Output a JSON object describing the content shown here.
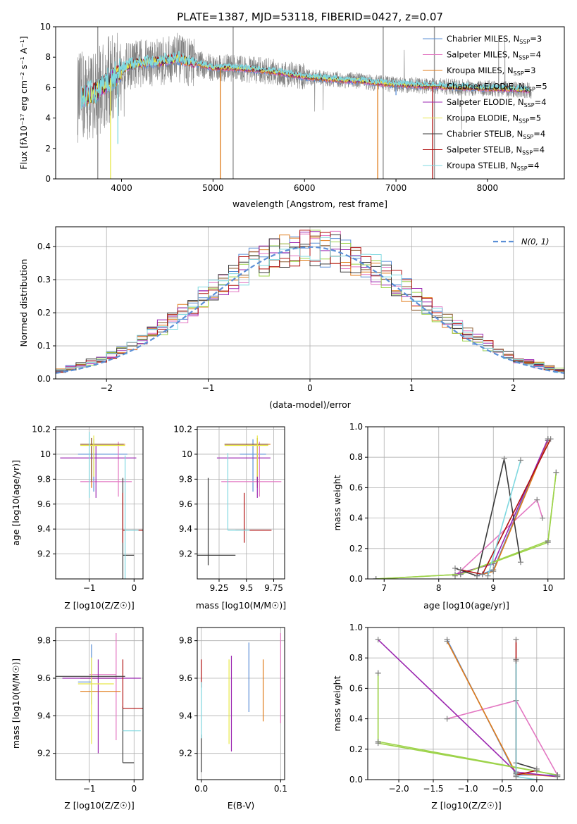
{
  "colors": {
    "Chabrier MILES": "#5b8fd6",
    "Salpeter MILES": "#e377c2",
    "Kroupa MILES": "#e07b1a",
    "Chabrier ELODIE": "#8a5a2e",
    "Salpeter ELODIE": "#9b27b0",
    "Kroupa ELODIE": "#e8e84a",
    "Chabrier STELIB": "#3a3a3a",
    "Salpeter STELIB": "#b01010",
    "Kroupa STELIB": "#7fd8e0",
    "gauss": "#5b8fd6",
    "green": "#9dd34a"
  },
  "chart_data": [
    {
      "id": "spectrum",
      "type": "line",
      "title": "PLATE=1387, MJD=53118, FIBERID=0427, z=0.07",
      "xlabel": "wavelength [Angstrom, rest frame]",
      "ylabel": "Flux [fλ10⁻¹⁷ erg cm⁻² s⁻¹ A⁻¹]",
      "xlim": [
        3280,
        8840
      ],
      "ylim": [
        0,
        10
      ],
      "xticks": [
        4000,
        5000,
        6000,
        7000,
        8000
      ],
      "yticks": [
        0,
        2,
        4,
        6,
        8,
        10
      ],
      "legend_position": "top-right",
      "continuum": [
        [
          3520,
          5.3
        ],
        [
          3700,
          5.6
        ],
        [
          3850,
          6.4
        ],
        [
          3950,
          6.8
        ],
        [
          4050,
          7.4
        ],
        [
          4200,
          7.6
        ],
        [
          4400,
          7.7
        ],
        [
          4600,
          7.9
        ],
        [
          4800,
          7.6
        ],
        [
          5000,
          7.3
        ],
        [
          5200,
          7.3
        ],
        [
          5400,
          7.2
        ],
        [
          5600,
          7.1
        ],
        [
          5800,
          6.9
        ],
        [
          6000,
          6.7
        ],
        [
          6200,
          6.6
        ],
        [
          6400,
          6.5
        ],
        [
          6600,
          6.45
        ],
        [
          6800,
          6.3
        ],
        [
          7000,
          6.2
        ],
        [
          7200,
          6.15
        ],
        [
          7400,
          6.1
        ],
        [
          7600,
          6.05
        ],
        [
          7800,
          6.0
        ],
        [
          8000,
          5.95
        ],
        [
          8200,
          5.9
        ],
        [
          8400,
          5.85
        ],
        [
          8480,
          5.8
        ]
      ],
      "series": [
        {
          "name": "Chabrier MILES, N_SSP=3",
          "legend": [
            "Chabrier MILES, N",
            "SSP",
            "=3"
          ]
        },
        {
          "name": "Salpeter MILES, N_SSP=4",
          "legend": [
            "Salpeter MILES, N",
            "SSP",
            "=4"
          ]
        },
        {
          "name": "Kroupa MILES, N_SSP=3",
          "legend": [
            "Kroupa MILES, N",
            "SSP",
            "=3"
          ]
        },
        {
          "name": "Chabrier ELODIE, N_SSP=5",
          "legend": [
            "Chabrier ELODIE, N",
            "SSP",
            "=5"
          ]
        },
        {
          "name": "Salpeter ELODIE, N_SSP=4",
          "legend": [
            "Salpeter ELODIE, N",
            "SSP",
            "=4"
          ]
        },
        {
          "name": "Kroupa ELODIE, N_SSP=5",
          "legend": [
            "Kroupa ELODIE, N",
            "SSP",
            "=5"
          ]
        },
        {
          "name": "Chabrier STELIB, N_SSP=4",
          "legend": [
            "Chabrier STELIB, N",
            "SSP",
            "=4"
          ]
        },
        {
          "name": "Salpeter STELIB, N_SSP=4",
          "legend": [
            "Salpeter STELIB, N",
            "SSP",
            "=4"
          ]
        },
        {
          "name": "Kroupa STELIB, N_SSP=4",
          "legend": [
            "Kroupa STELIB, N",
            "SSP",
            "=4"
          ]
        }
      ]
    },
    {
      "id": "residuals",
      "type": "line",
      "xlabel": "(data-model)/error",
      "ylabel": "Normed distribution",
      "xlim": [
        -2.5,
        2.5
      ],
      "ylim": [
        0,
        0.46
      ],
      "xticks": [
        -2,
        -1,
        0,
        1,
        2
      ],
      "yticks": [
        0.0,
        0.1,
        0.2,
        0.3,
        0.4
      ],
      "ytick_labels": [
        "0.0",
        "0.1",
        "0.2",
        "0.3",
        "0.4"
      ],
      "grid": true,
      "legend_position": "top-right",
      "gaussian_label": "N(0, 1)",
      "bin_width": 0.1
    },
    {
      "id": "age_vs_Z",
      "type": "scatter",
      "xlabel": "Z [log10(Z/Z☉)]",
      "ylabel": "age [log10(age/yr)]",
      "xlim": [
        -1.75,
        0.2
      ],
      "ylim": [
        9.0,
        10.22
      ],
      "xticks": [
        -1,
        0
      ],
      "yticks": [
        9.2,
        9.4,
        9.6,
        9.8,
        10.0,
        10.2
      ],
      "grid": true
    },
    {
      "id": "age_vs_mass",
      "type": "scatter",
      "xlabel": "mass [log10(M/M☉)]",
      "xlim": [
        9.05,
        9.85
      ],
      "ylim": [
        9.0,
        10.22
      ],
      "xticks": [
        9.25,
        9.5,
        9.75
      ],
      "yticks": [
        9.2,
        9.4,
        9.6,
        9.8,
        10.0,
        10.2
      ],
      "grid": true
    },
    {
      "id": "weight_vs_age",
      "type": "line",
      "xlabel": "age [log10(age/yr)]",
      "ylabel": "mass weight",
      "xlim": [
        6.7,
        10.3
      ],
      "ylim": [
        0,
        1.0
      ],
      "xticks": [
        7,
        8,
        9,
        10
      ],
      "yticks": [
        0.0,
        0.2,
        0.4,
        0.6,
        0.8,
        1.0
      ],
      "grid": true,
      "series": [
        {
          "name": "Chabrier MILES",
          "x": [
            8.7,
            9.0,
            10.0
          ],
          "y": [
            0.02,
            0.06,
            0.92
          ]
        },
        {
          "name": "Salpeter MILES",
          "x": [
            8.3,
            9.8,
            9.9
          ],
          "y": [
            0.02,
            0.52,
            0.4
          ]
        },
        {
          "name": "Kroupa MILES",
          "x": [
            8.8,
            9.0,
            10.0
          ],
          "y": [
            0.03,
            0.05,
            0.91
          ]
        },
        {
          "name": "Chabrier ELODIE",
          "x": [
            6.85,
            8.4,
            10.0,
            10.15
          ],
          "y": [
            0.0,
            0.03,
            0.25,
            0.7
          ]
        },
        {
          "name": "Salpeter ELODIE",
          "x": [
            8.3,
            9.0,
            10.0
          ],
          "y": [
            0.03,
            0.1,
            0.92
          ]
        },
        {
          "name": "Kroupa ELODIE",
          "x": [
            6.85,
            8.4,
            10.0,
            10.15
          ],
          "y": [
            0.0,
            0.03,
            0.24,
            0.7
          ]
        },
        {
          "name": "Chabrier STELIB",
          "x": [
            8.3,
            8.7,
            9.2,
            9.5
          ],
          "y": [
            0.07,
            0.02,
            0.79,
            0.11
          ]
        },
        {
          "name": "Salpeter STELIB",
          "x": [
            8.4,
            8.8,
            10.05
          ],
          "y": [
            0.06,
            0.03,
            0.92
          ]
        },
        {
          "name": "Kroupa STELIB",
          "x": [
            8.9,
            9.5
          ],
          "y": [
            0.02,
            0.78
          ]
        }
      ]
    },
    {
      "id": "mass_vs_Z",
      "type": "scatter",
      "xlabel": "Z [log10(Z/Z☉)]",
      "ylabel": "mass [log10(M/M☉)]",
      "xlim": [
        -1.75,
        0.2
      ],
      "ylim": [
        9.06,
        9.87
      ],
      "xticks": [
        -1,
        0
      ],
      "yticks": [
        9.2,
        9.4,
        9.6,
        9.8
      ],
      "grid": true
    },
    {
      "id": "mass_vs_ebv",
      "type": "scatter",
      "xlabel": "E(B-V)",
      "xlim": [
        -0.005,
        0.105
      ],
      "ylim": [
        9.06,
        9.87
      ],
      "xticks": [
        0.0,
        0.1
      ],
      "xtick_labels": [
        "0.0",
        "0.1"
      ],
      "yticks": [
        9.2,
        9.4,
        9.6,
        9.8
      ],
      "grid": true
    },
    {
      "id": "weight_vs_Z",
      "type": "line",
      "xlabel": "Z [log10(Z/Z☉)]",
      "ylabel": "mass weight",
      "xlim": [
        -2.45,
        0.4
      ],
      "ylim": [
        0,
        1.0
      ],
      "xticks": [
        -2.0,
        -1.5,
        -1.0,
        -0.5,
        0.0
      ],
      "xtick_labels": [
        "−2.0",
        "−1.5",
        "−1.0",
        "−0.5",
        "0.0"
      ],
      "yticks": [
        0.0,
        0.2,
        0.4,
        0.6,
        0.8,
        1.0
      ],
      "grid": true,
      "series": [
        {
          "name": "Chabrier MILES",
          "x": [
            -1.3,
            -0.3,
            0.3
          ],
          "y": [
            0.92,
            0.03,
            0.03
          ]
        },
        {
          "name": "Salpeter MILES",
          "x": [
            -1.3,
            -0.3,
            0.3
          ],
          "y": [
            0.4,
            0.52,
            0.03
          ]
        },
        {
          "name": "Kroupa MILES",
          "x": [
            -1.3,
            -0.3,
            0.3
          ],
          "y": [
            0.91,
            0.04,
            0.02
          ]
        },
        {
          "name": "Chabrier ELODIE",
          "x": [
            -2.3,
            -2.3,
            0.3
          ],
          "y": [
            0.7,
            0.24,
            0.03
          ]
        },
        {
          "name": "Salpeter ELODIE",
          "x": [
            -2.3,
            -0.3,
            0.3
          ],
          "y": [
            0.92,
            0.05,
            0.02
          ]
        },
        {
          "name": "Kroupa ELODIE",
          "x": [
            -2.3,
            -2.3,
            0.3
          ],
          "y": [
            0.7,
            0.25,
            0.03
          ]
        },
        {
          "name": "Chabrier STELIB",
          "x": [
            -0.3,
            -0.3,
            0.0
          ],
          "y": [
            0.79,
            0.11,
            0.07
          ]
        },
        {
          "name": "Salpeter STELIB",
          "x": [
            -0.3,
            -0.3,
            0.0
          ],
          "y": [
            0.92,
            0.03,
            0.06
          ]
        },
        {
          "name": "Kroupa STELIB",
          "x": [
            -0.3,
            -0.3,
            0.0
          ],
          "y": [
            0.78,
            0.02,
            0.0
          ]
        }
      ]
    }
  ]
}
